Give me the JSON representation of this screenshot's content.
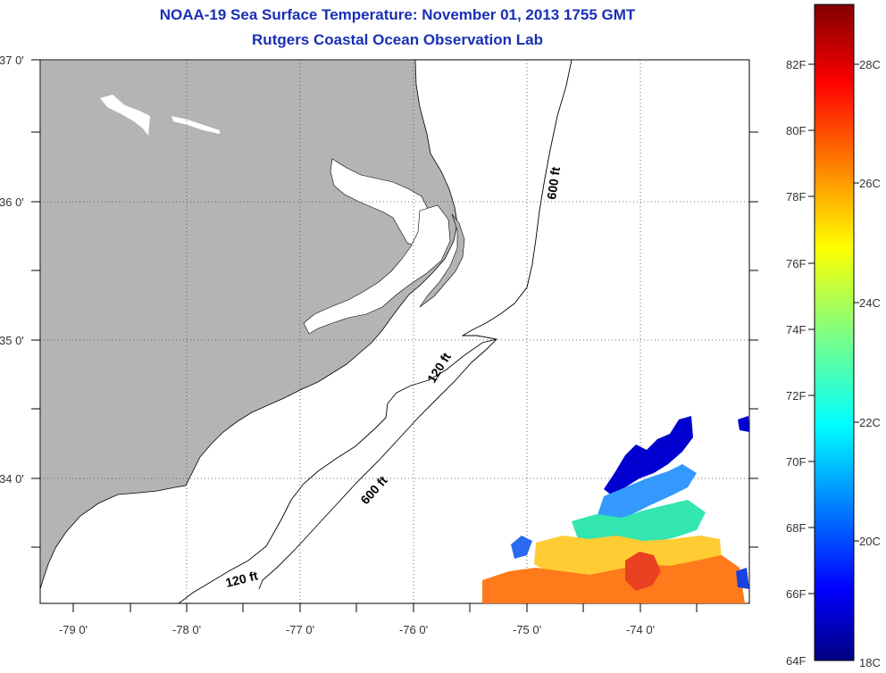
{
  "header": {
    "title": "NOAA-19 Sea Surface Temperature:  November 01, 2013 1755 GMT",
    "subtitle": "Rutgers Coastal Ocean Observation Lab"
  },
  "map": {
    "lat_labels": [
      "37 0'",
      "36 0'",
      "35 0'",
      "34 0'"
    ],
    "lon_labels": [
      "-79 0'",
      "-78 0'",
      "-77 0'",
      "-76 0'",
      "-75 0'",
      "-74 0'"
    ],
    "contour_labels": [
      "600 ft",
      "120 ft",
      "600 ft",
      "120 ft"
    ],
    "land_color": "#b4b4b4"
  },
  "colorbar": {
    "f_labels": [
      "82F",
      "80F",
      "78F",
      "76F",
      "74F",
      "72F",
      "70F",
      "68F",
      "66F",
      "64F"
    ],
    "c_labels": [
      "28C",
      "26C",
      "24C",
      "22C",
      "20C",
      "18C"
    ],
    "colormap": "jet"
  }
}
